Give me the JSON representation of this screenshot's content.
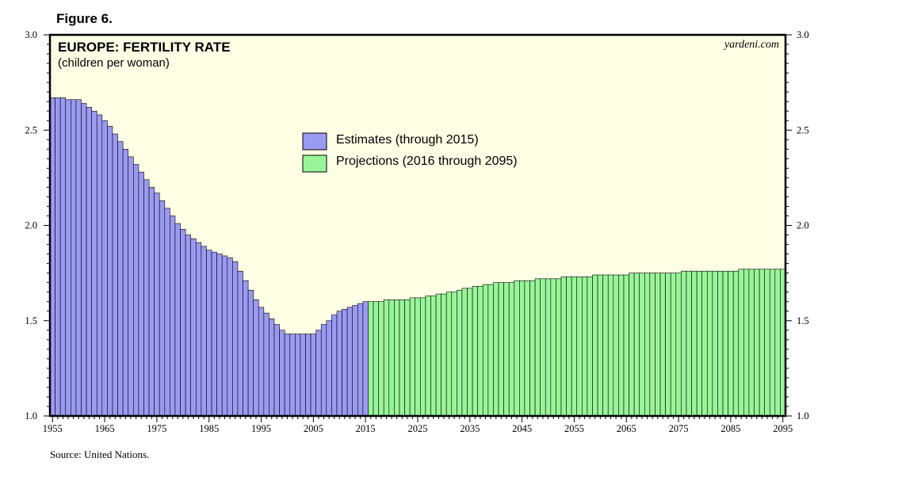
{
  "figure_label": "Figure 6.",
  "source_note": "Source: United Nations.",
  "colors": {
    "plot_background": "#FFFFE6",
    "estimates": "#9A9AF2",
    "projections": "#99F599",
    "bar_edge": "#000000"
  },
  "chart_data": {
    "type": "bar",
    "title": "EUROPE: FERTILITY RATE",
    "subtitle": "(children per woman)",
    "watermark": "yardeni.com",
    "xlabel": "",
    "ylabel": "",
    "ylim": [
      1.0,
      3.0
    ],
    "xlim": [
      1955,
      2096
    ],
    "y_ticks": [
      "1.0",
      "1.5",
      "2.0",
      "2.5",
      "3.0"
    ],
    "x_ticks": [
      "1955",
      "1965",
      "1975",
      "1985",
      "1995",
      "2005",
      "2015",
      "2025",
      "2035",
      "2045",
      "2055",
      "2065",
      "2075",
      "2085",
      "2095"
    ],
    "grid": false,
    "legend_position": "top-center",
    "series": [
      {
        "name": "Estimates (through 2015)",
        "start_year": 1955,
        "values": [
          2.67,
          2.67,
          2.67,
          2.66,
          2.66,
          2.66,
          2.64,
          2.62,
          2.6,
          2.58,
          2.55,
          2.52,
          2.48,
          2.44,
          2.4,
          2.36,
          2.32,
          2.28,
          2.24,
          2.2,
          2.17,
          2.13,
          2.09,
          2.05,
          2.01,
          1.98,
          1.95,
          1.93,
          1.91,
          1.89,
          1.87,
          1.86,
          1.85,
          1.84,
          1.83,
          1.81,
          1.76,
          1.71,
          1.66,
          1.61,
          1.57,
          1.54,
          1.51,
          1.48,
          1.45,
          1.43,
          1.43,
          1.43,
          1.43,
          1.43,
          1.43,
          1.45,
          1.48,
          1.5,
          1.53,
          1.55,
          1.56,
          1.57,
          1.58,
          1.59,
          1.6
        ]
      },
      {
        "name": "Projections (2016 through 2095)",
        "start_year": 2016,
        "values": [
          1.6,
          1.6,
          1.6,
          1.61,
          1.61,
          1.61,
          1.61,
          1.61,
          1.62,
          1.62,
          1.62,
          1.63,
          1.63,
          1.64,
          1.64,
          1.65,
          1.65,
          1.66,
          1.67,
          1.67,
          1.68,
          1.68,
          1.69,
          1.69,
          1.7,
          1.7,
          1.7,
          1.7,
          1.71,
          1.71,
          1.71,
          1.71,
          1.72,
          1.72,
          1.72,
          1.72,
          1.72,
          1.73,
          1.73,
          1.73,
          1.73,
          1.73,
          1.73,
          1.74,
          1.74,
          1.74,
          1.74,
          1.74,
          1.74,
          1.74,
          1.75,
          1.75,
          1.75,
          1.75,
          1.75,
          1.75,
          1.75,
          1.75,
          1.75,
          1.75,
          1.76,
          1.76,
          1.76,
          1.76,
          1.76,
          1.76,
          1.76,
          1.76,
          1.76,
          1.76,
          1.76,
          1.77,
          1.77,
          1.77,
          1.77,
          1.77,
          1.77,
          1.77,
          1.77,
          1.77
        ]
      }
    ]
  }
}
